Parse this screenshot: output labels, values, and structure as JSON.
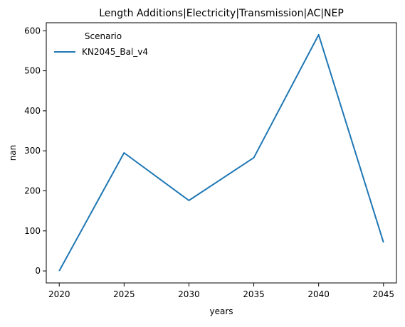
{
  "chart_data": {
    "type": "line",
    "title": "Length Additions|Electricity|Transmission|AC|NEP",
    "xlabel": "years",
    "ylabel": "nan",
    "x": [
      2020,
      2025,
      2030,
      2035,
      2040,
      2045
    ],
    "xlim": [
      2019,
      2046
    ],
    "ylim": [
      -30,
      620
    ],
    "xticks": [
      2020,
      2025,
      2030,
      2035,
      2040,
      2045
    ],
    "yticks": [
      0,
      100,
      200,
      300,
      400,
      500,
      600
    ],
    "grid": false,
    "legend": {
      "title": "Scenario",
      "placement": "top-left"
    },
    "series": [
      {
        "name": "KN2045_Bal_v4",
        "color": "#1f77b4",
        "values": [
          0,
          295,
          176,
          283,
          590,
          71
        ]
      }
    ]
  }
}
